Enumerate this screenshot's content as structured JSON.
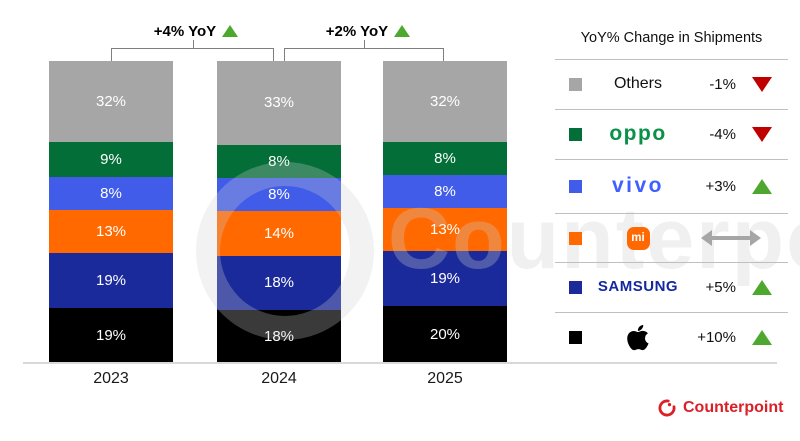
{
  "watermark": "Counterpoint",
  "colors": {
    "others": "#a6a6a6",
    "oppo": "#046e39",
    "vivo": "#415ce8",
    "xiaomi": "#ff6900",
    "samsung": "#1b2a9b",
    "apple": "#000000",
    "up": "#4ea72e",
    "down": "#c00000",
    "flat": "#a6a6a6",
    "oppo_wordmark": "#0a9148",
    "vivo_wordmark": "#415fff",
    "samsung_wordmark": "#1428a0",
    "counterpoint_red": "#da1f26"
  },
  "chart_data": {
    "type": "bar",
    "stacked": true,
    "unit": "%",
    "stack_order": "top-to-bottom",
    "categories": [
      "2023",
      "2024",
      "2025"
    ],
    "series": [
      {
        "name": "Others",
        "color_key": "others",
        "values": [
          32,
          33,
          32
        ]
      },
      {
        "name": "OPPO",
        "color_key": "oppo",
        "values": [
          9,
          8,
          8
        ]
      },
      {
        "name": "vivo",
        "color_key": "vivo",
        "values": [
          8,
          8,
          8
        ]
      },
      {
        "name": "Xiaomi",
        "color_key": "xiaomi",
        "values": [
          13,
          14,
          13
        ]
      },
      {
        "name": "Samsung",
        "color_key": "samsung",
        "values": [
          19,
          18,
          19
        ]
      },
      {
        "name": "Apple",
        "color_key": "apple",
        "values": [
          19,
          18,
          20
        ]
      }
    ],
    "annotations": [
      {
        "label": "+4% YoY",
        "direction": "up",
        "from": "2023",
        "to": "2024"
      },
      {
        "label": "+2% YoY",
        "direction": "up",
        "from": "2024",
        "to": "2025"
      }
    ],
    "legend_position": "right",
    "grid": false
  },
  "legend": {
    "title": "YoY% Change in Shipments",
    "rows": [
      {
        "brand": "Others",
        "value": "-1%",
        "direction": "down"
      },
      {
        "brand": "OPPO",
        "wordmark": "oppo",
        "value": "-4%",
        "direction": "down"
      },
      {
        "brand": "vivo",
        "wordmark": "vivo",
        "value": "+3%",
        "direction": "up"
      },
      {
        "brand": "Xiaomi",
        "logo_text": "mi",
        "value": "",
        "direction": "flat"
      },
      {
        "brand": "Samsung",
        "wordmark": "SAMSUNG",
        "value": "+5%",
        "direction": "up"
      },
      {
        "brand": "Apple",
        "value": "+10%",
        "direction": "up"
      }
    ]
  },
  "footer": {
    "brand": "Counterpoint"
  }
}
